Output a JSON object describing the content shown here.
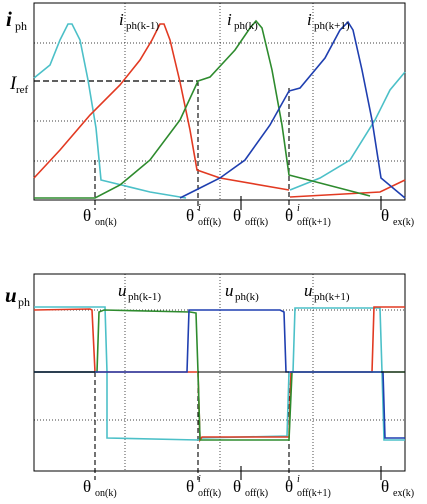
{
  "top_panel": {
    "y_symbol": "i",
    "y_subscript": "ph",
    "iref_symbol": "I",
    "iref_subscript": "ref",
    "curve_labels": [
      {
        "symbol": "i",
        "subscript": "ph(k-1)",
        "color": "#e23a22"
      },
      {
        "symbol": "i",
        "subscript": "ph(k)",
        "color": "#2e8b2e"
      },
      {
        "symbol": "i",
        "subscript": "ph(k+1)",
        "color": "#1f3fb0"
      }
    ],
    "angle_labels": [
      {
        "main": "θ",
        "sup": "",
        "sub": "on(k)"
      },
      {
        "main": "θ",
        "sup": "i",
        "sub": "off(k)"
      },
      {
        "main": "θ",
        "sup": "",
        "sub": "off(k)"
      },
      {
        "main": "θ",
        "sup": "i",
        "sub": "off(k+1)"
      },
      {
        "main": "θ",
        "sup": "",
        "sub": "ex(k)"
      }
    ]
  },
  "bottom_panel": {
    "y_symbol": "u",
    "y_subscript": "ph",
    "curve_labels": [
      {
        "symbol": "u",
        "subscript": "ph(k-1)",
        "color": "#e23a22"
      },
      {
        "symbol": "u",
        "subscript": "ph(k)",
        "color": "#2e8b2e"
      },
      {
        "symbol": "u",
        "subscript": "ph(k+1)",
        "color": "#1f3fb0"
      }
    ],
    "angle_labels": [
      {
        "main": "θ",
        "sup": "",
        "sub": "on(k)"
      },
      {
        "main": "θ",
        "sup": "i",
        "sub": "off(k)"
      },
      {
        "main": "θ",
        "sup": "",
        "sub": "off(k)"
      },
      {
        "main": "θ",
        "sup": "i",
        "sub": "off(k+1)"
      },
      {
        "main": "θ",
        "sup": "",
        "sub": "ex(k)"
      }
    ]
  },
  "colors": {
    "red": "#e23a22",
    "green": "#2e8b2e",
    "blue": "#1f3fb0",
    "cyan": "#4cc0c8"
  }
}
